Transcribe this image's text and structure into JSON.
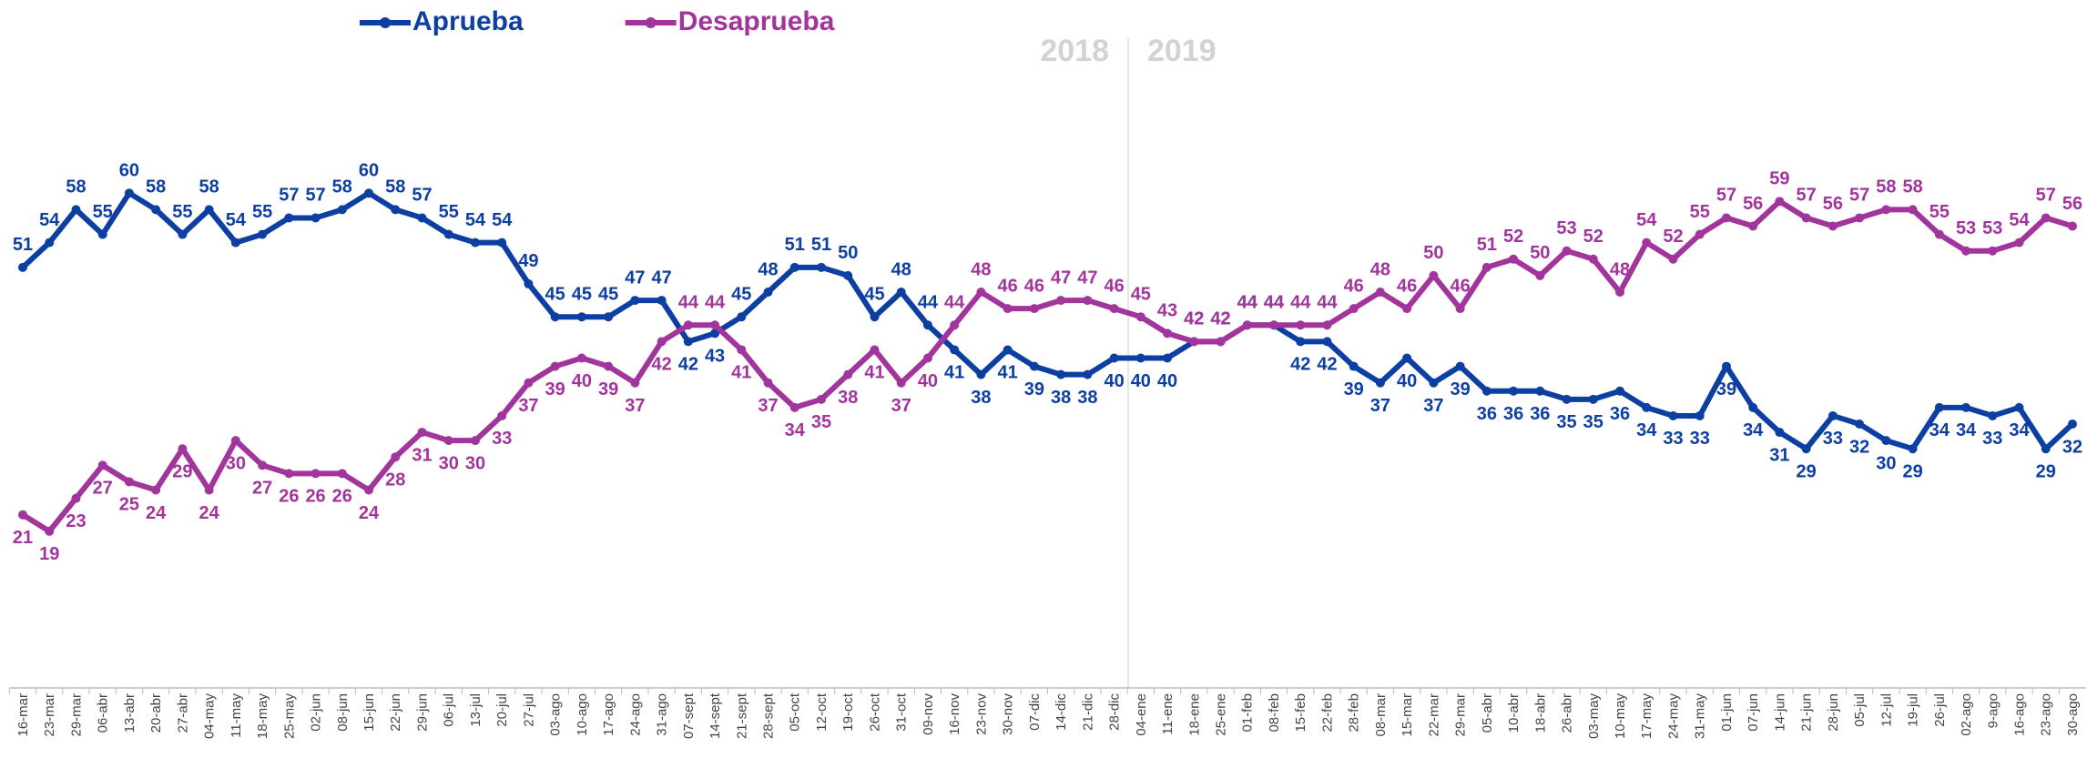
{
  "chart_data": {
    "type": "line",
    "categories": [
      "16-mar",
      "23-mar",
      "29-mar",
      "06-abr",
      "13-abr",
      "20-abr",
      "27-abr",
      "04-may",
      "11-may",
      "18-may",
      "25-may",
      "02-jun",
      "08-jun",
      "15-jun",
      "22-jun",
      "29-jun",
      "06-jul",
      "13-jul",
      "20-jul",
      "27-jul",
      "03-ago",
      "10-ago",
      "17-ago",
      "24-ago",
      "31-ago",
      "07-sept",
      "14-sept",
      "21-sept",
      "28-sept",
      "05-oct",
      "12-oct",
      "19-oct",
      "26-oct",
      "31-oct",
      "09-nov",
      "16-nov",
      "23-nov",
      "30-nov",
      "07-dic",
      "14-dic",
      "21-dic",
      "28-dic",
      "04-ene",
      "11-ene",
      "18-ene",
      "25-ene",
      "01-feb",
      "08-feb",
      "15-feb",
      "22-feb",
      "28-feb",
      "08-mar",
      "15-mar",
      "22-mar",
      "29-mar",
      "05-abr",
      "10-abr",
      "18-abr",
      "26-abr",
      "03-may",
      "10-may",
      "17-may",
      "24-may",
      "31-may",
      "01-jun",
      "07-jun",
      "14-jun",
      "21-jun",
      "28-jun",
      "05-jul",
      "12-jul",
      "19-jul",
      "26-jul",
      "02-ago",
      "9-ago",
      "16-ago",
      "23-ago",
      "30-ago"
    ],
    "series": [
      {
        "name": "Aprueba",
        "color": "#0d3fa3",
        "values": [
          51,
          54,
          58,
          55,
          60,
          58,
          55,
          58,
          54,
          55,
          57,
          57,
          58,
          60,
          58,
          57,
          55,
          54,
          54,
          49,
          45,
          45,
          45,
          47,
          47,
          42,
          43,
          45,
          48,
          51,
          51,
          50,
          45,
          48,
          44,
          41,
          38,
          41,
          39,
          38,
          38,
          40,
          40,
          40,
          42,
          42,
          44,
          44,
          42,
          42,
          39,
          37,
          40,
          37,
          39,
          36,
          36,
          36,
          35,
          35,
          36,
          34,
          33,
          33,
          39,
          34,
          31,
          29,
          33,
          32,
          30,
          29,
          34,
          34,
          33,
          34,
          29,
          32
        ]
      },
      {
        "name": "Desaprueba",
        "color": "#a2359c",
        "values": [
          21,
          19,
          23,
          27,
          25,
          24,
          29,
          24,
          30,
          27,
          26,
          26,
          26,
          24,
          28,
          31,
          30,
          30,
          33,
          37,
          39,
          40,
          39,
          37,
          42,
          44,
          44,
          41,
          37,
          34,
          35,
          38,
          41,
          37,
          40,
          44,
          48,
          46,
          46,
          47,
          47,
          46,
          45,
          43,
          42,
          42,
          44,
          44,
          44,
          44,
          46,
          48,
          46,
          50,
          46,
          51,
          52,
          50,
          53,
          52,
          48,
          54,
          52,
          55,
          57,
          56,
          59,
          57,
          56,
          57,
          58,
          58,
          55,
          53,
          53,
          54,
          57,
          56
        ]
      }
    ],
    "annotations": [
      "2018",
      "2019"
    ],
    "ylim": [
      0,
      80
    ],
    "legend": "top-left"
  }
}
